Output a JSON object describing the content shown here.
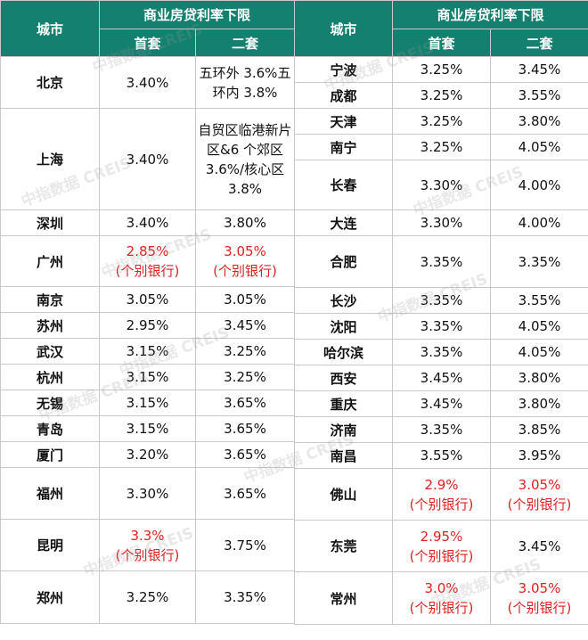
{
  "header": {
    "city": "城市",
    "group": "商业房贷利率下限",
    "first": "首套",
    "second": "二套"
  },
  "watermark": "中指数据 CREIS",
  "note_text": "(个别银行)",
  "left_rows": [
    {
      "city": "北京",
      "first": "3.40%",
      "second": "五环外 3.6%五环内 3.8%"
    },
    {
      "city": "上海",
      "first": "3.40%",
      "second": "自贸区临港新片区&6 个郊区 3.6%/核心区 3.8%"
    },
    {
      "city": "深圳",
      "first": "3.40%",
      "second": "3.80%"
    },
    {
      "city": "广州",
      "first": "2.85%",
      "second": "3.05%"
    },
    {
      "city": "南京",
      "first": "3.05%",
      "second": "3.05%"
    },
    {
      "city": "苏州",
      "first": "2.95%",
      "second": "3.45%"
    },
    {
      "city": "武汉",
      "first": "3.15%",
      "second": "3.25%"
    },
    {
      "city": "杭州",
      "first": "3.15%",
      "second": "3.25%"
    },
    {
      "city": "无锡",
      "first": "3.15%",
      "second": "3.65%"
    },
    {
      "city": "青岛",
      "first": "3.15%",
      "second": "3.65%"
    },
    {
      "city": "厦门",
      "first": "3.20%",
      "second": "3.65%"
    },
    {
      "city": "福州",
      "first": "3.30%",
      "second": "3.65%"
    },
    {
      "city": "昆明",
      "first": "3.3%",
      "second": "3.75%"
    },
    {
      "city": "郑州",
      "first": "3.25%",
      "second": "3.35%"
    }
  ],
  "right_rows": [
    {
      "city": "宁波",
      "first": "3.25%",
      "second": "3.45%"
    },
    {
      "city": "成都",
      "first": "3.25%",
      "second": "3.55%"
    },
    {
      "city": "天津",
      "first": "3.25%",
      "second": "3.80%"
    },
    {
      "city": "南宁",
      "first": "3.25%",
      "second": "4.05%"
    },
    {
      "city": "长春",
      "first": "3.30%",
      "second": "4.00%"
    },
    {
      "city": "大连",
      "first": "3.30%",
      "second": "4.00%"
    },
    {
      "city": "合肥",
      "first": "3.35%",
      "second": "3.35%"
    },
    {
      "city": "长沙",
      "first": "3.35%",
      "second": "3.55%"
    },
    {
      "city": "沈阳",
      "first": "3.35%",
      "second": "4.05%"
    },
    {
      "city": "哈尔滨",
      "first": "3.35%",
      "second": "4.05%"
    },
    {
      "city": "西安",
      "first": "3.45%",
      "second": "3.80%"
    },
    {
      "city": "重庆",
      "first": "3.45%",
      "second": "3.80%"
    },
    {
      "city": "济南",
      "first": "3.35%",
      "second": "3.85%"
    },
    {
      "city": "南昌",
      "first": "3.55%",
      "second": "3.95%"
    },
    {
      "city": "佛山",
      "first": "2.9%",
      "second": "3.05%"
    },
    {
      "city": "东莞",
      "first": "2.95%",
      "second": "3.45%"
    },
    {
      "city": "常州",
      "first": "3.0%",
      "second": "3.05%"
    }
  ],
  "colors": {
    "header_bg": "#14806f",
    "highlight": "#e02020"
  }
}
